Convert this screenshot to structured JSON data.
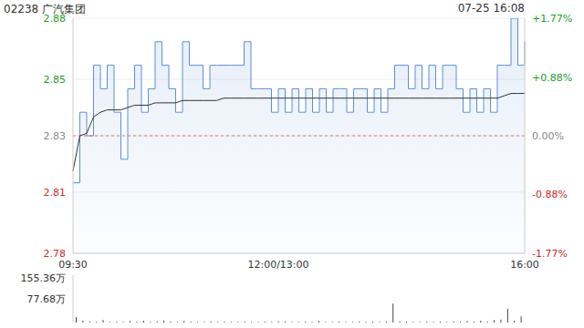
{
  "chart_data": [
    {
      "type": "line",
      "title": "02238 广汽集团",
      "subtitle": "07-25 16:08",
      "categories": [
        "09:30",
        null,
        null,
        null,
        null,
        null,
        null,
        null,
        null,
        null,
        null,
        null,
        null,
        null,
        null,
        null,
        null,
        null,
        null,
        null,
        null,
        null,
        null,
        null,
        null,
        null,
        null,
        null,
        null,
        null,
        "12:00/13:00",
        null,
        null,
        null,
        null,
        null,
        null,
        null,
        null,
        null,
        null,
        null,
        null,
        null,
        null,
        null,
        null,
        null,
        null,
        null,
        null,
        null,
        null,
        null,
        null,
        null,
        null,
        null,
        null,
        null,
        null,
        null,
        null,
        null,
        null,
        null,
        "16:00"
      ],
      "series": [
        {
          "type": "area",
          "color": "#5b8fd9",
          "line_style": "step",
          "values": [
            2.81,
            2.84,
            2.83,
            2.86,
            2.85,
            2.86,
            2.84,
            2.82,
            2.85,
            2.86,
            2.84,
            2.85,
            2.87,
            2.86,
            2.85,
            2.84,
            2.87,
            2.86,
            2.86,
            2.85,
            2.86,
            2.86,
            2.86,
            2.86,
            2.86,
            2.87,
            2.85,
            2.85,
            2.85,
            2.84,
            2.85,
            2.84,
            2.85,
            2.84,
            2.85,
            2.84,
            2.85,
            2.84,
            2.85,
            2.85,
            2.84,
            2.85,
            2.85,
            2.84,
            2.85,
            2.84,
            2.85,
            2.86,
            2.86,
            2.85,
            2.86,
            2.85,
            2.86,
            2.85,
            2.86,
            2.86,
            2.85,
            2.84,
            2.85,
            2.84,
            2.85,
            2.84,
            2.86,
            2.86,
            2.88,
            2.86,
            2.87
          ]
        },
        {
          "type": "line",
          "color": "#333333",
          "line_style": "solid",
          "values": [
            2.815,
            2.83,
            2.831,
            2.838,
            2.84,
            2.841,
            2.841,
            2.841,
            2.842,
            2.843,
            2.843,
            2.843,
            2.844,
            2.844,
            2.844,
            2.844,
            2.845,
            2.845,
            2.845,
            2.845,
            2.845,
            2.845,
            2.846,
            2.846,
            2.846,
            2.846,
            2.846,
            2.846,
            2.846,
            2.846,
            2.846,
            2.846,
            2.846,
            2.846,
            2.846,
            2.846,
            2.846,
            2.846,
            2.846,
            2.846,
            2.846,
            2.846,
            2.846,
            2.846,
            2.846,
            2.846,
            2.846,
            2.846,
            2.846,
            2.846,
            2.846,
            2.846,
            2.846,
            2.846,
            2.846,
            2.846,
            2.846,
            2.846,
            2.846,
            2.846,
            2.846,
            2.846,
            2.846,
            2.847,
            2.848,
            2.848,
            2.848
          ]
        }
      ],
      "prev_close": 2.83,
      "ylim": [
        2.78,
        2.88
      ],
      "yticks": [
        2.78,
        {
          "value": 2.806,
          "label": "2.81"
        },
        2.83,
        {
          "value": 2.854,
          "label": "2.85"
        },
        2.88
      ],
      "y2lim": [
        -1.77,
        1.77
      ],
      "y2ticks": [
        {
          "value": -1.77,
          "label": "-1.77%"
        },
        {
          "value": -0.88,
          "label": "-0.88%"
        },
        {
          "value": 0,
          "label": "0.00%"
        },
        {
          "value": 0.88,
          "label": "+0.88%"
        },
        {
          "value": 1.77,
          "label": "+1.77%"
        }
      ],
      "grid": true
    },
    {
      "type": "bar",
      "categories": [
        "09:30",
        null,
        null,
        null,
        null,
        null,
        null,
        null,
        null,
        null,
        null,
        null,
        null,
        null,
        null,
        null,
        null,
        null,
        null,
        null,
        null,
        null,
        null,
        null,
        null,
        null,
        null,
        null,
        null,
        null,
        "12:00/13:00",
        null,
        null,
        null,
        null,
        null,
        null,
        null,
        null,
        null,
        null,
        null,
        null,
        null,
        null,
        null,
        null,
        null,
        null,
        null,
        null,
        null,
        null,
        null,
        null,
        null,
        null,
        null,
        null,
        null,
        null,
        null,
        null,
        null,
        null,
        null,
        "16:00"
      ],
      "values": [
        18,
        6,
        4,
        3,
        8,
        2,
        3,
        2,
        5,
        3,
        6,
        2,
        4,
        7,
        3,
        2,
        5,
        3,
        2,
        2,
        4,
        2,
        3,
        2,
        2,
        3,
        2,
        2,
        3,
        2,
        4,
        3,
        2,
        2,
        3,
        2,
        5,
        2,
        2,
        3,
        2,
        2,
        4,
        2,
        3,
        2,
        3,
        62,
        4,
        3,
        2,
        2,
        3,
        2,
        3,
        2,
        4,
        3,
        5,
        3,
        6,
        4,
        8,
        10,
        45,
        6,
        20
      ],
      "color": "#444444",
      "ylim": [
        0,
        155.36
      ],
      "yticks": [
        0,
        {
          "value": 77.68,
          "label": "77.68万"
        },
        {
          "value": 155.36,
          "label": "155.36万"
        }
      ],
      "tick_labels": "y"
    }
  ]
}
